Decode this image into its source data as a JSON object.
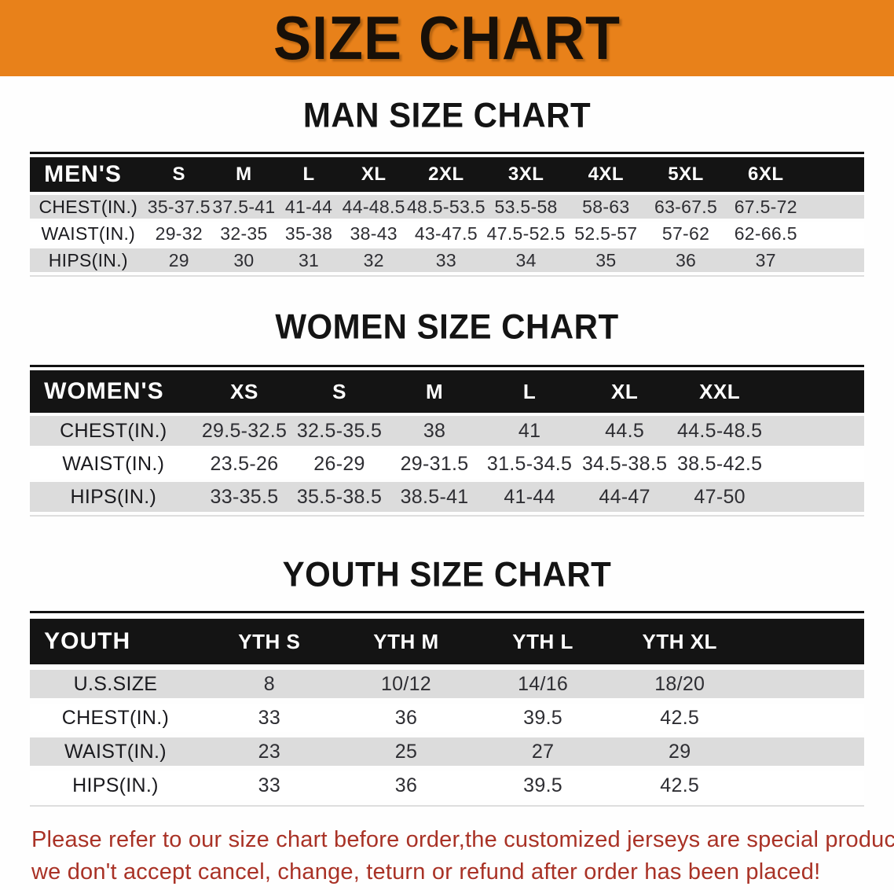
{
  "banner": {
    "title": "SIZE CHART"
  },
  "colors": {
    "banner_bg": "#e8811a",
    "header_band": "#141414",
    "row_stripe": "#dcdcdc",
    "note_text": "#a93226"
  },
  "sections": [
    {
      "heading": "MAN SIZE CHART",
      "table": {
        "corner_label": "MEN'S",
        "columns": [
          "S",
          "M",
          "L",
          "XL",
          "2XL",
          "3XL",
          "4XL",
          "5XL",
          "6XL"
        ],
        "rows": [
          {
            "label": "CHEST(IN.)",
            "values": [
              "35-37.5",
              "37.5-41",
              "41-44",
              "44-48.5",
              "48.5-53.5",
              "53.5-58",
              "58-63",
              "63-67.5",
              "67.5-72"
            ]
          },
          {
            "label": "WAIST(IN.)",
            "values": [
              "29-32",
              "32-35",
              "35-38",
              "38-43",
              "43-47.5",
              "47.5-52.5",
              "52.5-57",
              "57-62",
              "62-66.5"
            ]
          },
          {
            "label": "HIPS(IN.)",
            "values": [
              "29",
              "30",
              "31",
              "32",
              "33",
              "34",
              "35",
              "36",
              "37"
            ]
          }
        ]
      }
    },
    {
      "heading": "WOMEN SIZE CHART",
      "table": {
        "corner_label": "WOMEN'S",
        "columns": [
          "XS",
          "S",
          "M",
          "L",
          "XL",
          "XXL"
        ],
        "rows": [
          {
            "label": "CHEST(IN.)",
            "values": [
              "29.5-32.5",
              "32.5-35.5",
              "38",
              "41",
              "44.5",
              "44.5-48.5"
            ]
          },
          {
            "label": "WAIST(IN.)",
            "values": [
              "23.5-26",
              "26-29",
              "29-31.5",
              "31.5-34.5",
              "34.5-38.5",
              "38.5-42.5"
            ]
          },
          {
            "label": "HIPS(IN.)",
            "values": [
              "33-35.5",
              "35.5-38.5",
              "38.5-41",
              "41-44",
              "44-47",
              "47-50"
            ]
          }
        ]
      }
    },
    {
      "heading": "YOUTH SIZE CHART",
      "table": {
        "corner_label": "YOUTH",
        "columns": [
          "YTH S",
          "YTH M",
          "YTH L",
          "YTH XL"
        ],
        "rows": [
          {
            "label": "U.S.SIZE",
            "values": [
              "8",
              "10/12",
              "14/16",
              "18/20"
            ]
          },
          {
            "label": "CHEST(IN.)",
            "values": [
              "33",
              "36",
              "39.5",
              "42.5"
            ]
          },
          {
            "label": "WAIST(IN.)",
            "values": [
              "23",
              "25",
              "27",
              "29"
            ]
          },
          {
            "label": "HIPS(IN.)",
            "values": [
              "33",
              "36",
              "39.5",
              "42.5"
            ]
          }
        ]
      }
    }
  ],
  "footer": {
    "line1": "Please refer to our size chart before order,the customized jerseys are special products,",
    "line2": "we don't accept cancel, change, teturn or refund after order has been placed!"
  }
}
